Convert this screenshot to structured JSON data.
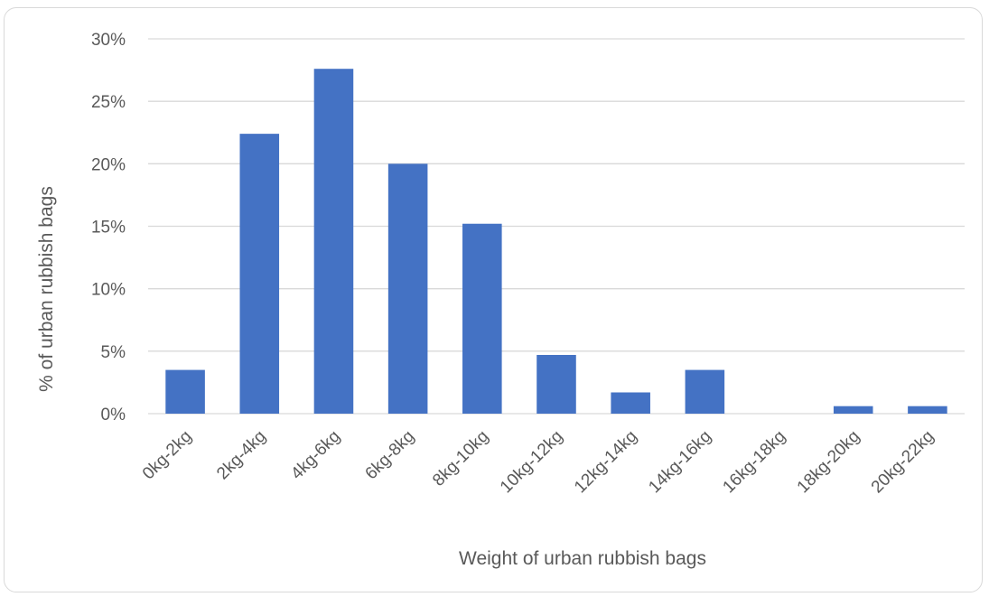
{
  "chart_data": {
    "type": "bar",
    "xlabel": "Weight of urban rubbish bags",
    "ylabel": "% of urban rubbish bags",
    "categories": [
      "0kg-2kg",
      "2kg-4kg",
      "4kg-6kg",
      "6kg-8kg",
      "8kg-10kg",
      "10kg-12kg",
      "12kg-14kg",
      "14kg-16kg",
      "16kg-18kg",
      "18kg-20kg",
      "20kg-22kg"
    ],
    "values": [
      3.5,
      22.4,
      27.6,
      20.0,
      15.2,
      4.7,
      1.7,
      3.5,
      0,
      0.6,
      0.6
    ],
    "ylim": [
      0,
      30
    ],
    "yticks": [
      "0%",
      "5%",
      "10%",
      "15%",
      "20%",
      "25%",
      "30%"
    ],
    "grid": true,
    "legend": "none",
    "bar_color": "#4472c4",
    "grid_color": "#d9d9d9"
  }
}
